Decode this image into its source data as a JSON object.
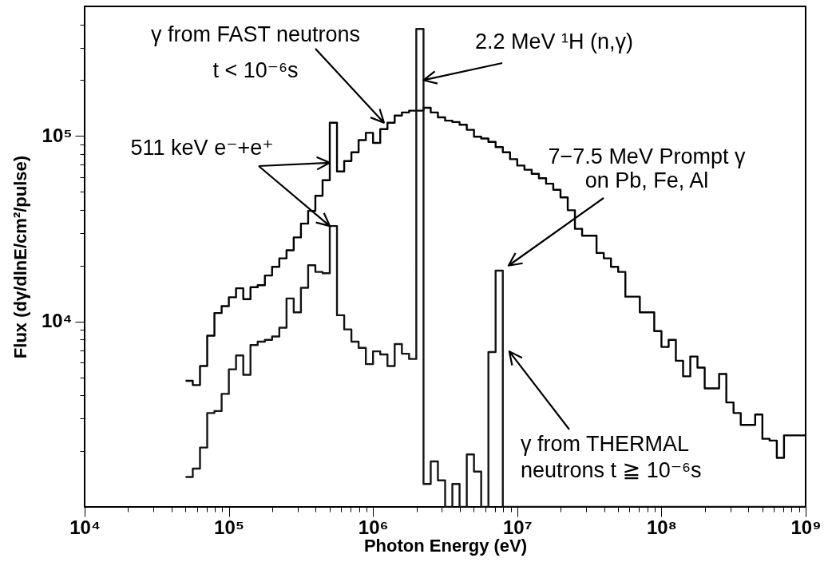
{
  "chart_data": {
    "type": "histogram",
    "xlabel": "Photon Energy (eV)",
    "ylabel": "Flux (dγ/dlnE/cm²/pulse)",
    "log": "xy",
    "xlim": [
      10000,
      1000000000
    ],
    "ylim": [
      1000,
      500000
    ],
    "xticks": [
      {
        "value": 10000,
        "label": "10⁴"
      },
      {
        "value": 20000,
        "label": null
      },
      {
        "value": 30000,
        "label": null
      },
      {
        "value": 40000,
        "label": null
      },
      {
        "value": 50000,
        "label": null
      },
      {
        "value": 60000,
        "label": null
      },
      {
        "value": 70000,
        "label": null
      },
      {
        "value": 80000,
        "label": null
      },
      {
        "value": 90000,
        "label": null
      },
      {
        "value": 100000,
        "label": "10⁵"
      },
      {
        "value": 200000,
        "label": null
      },
      {
        "value": 300000,
        "label": null
      },
      {
        "value": 400000,
        "label": null
      },
      {
        "value": 500000,
        "label": null
      },
      {
        "value": 600000,
        "label": null
      },
      {
        "value": 700000,
        "label": null
      },
      {
        "value": 800000,
        "label": null
      },
      {
        "value": 900000,
        "label": null
      },
      {
        "value": 1000000,
        "label": "10⁶"
      },
      {
        "value": 2000000,
        "label": null
      },
      {
        "value": 3000000,
        "label": null
      },
      {
        "value": 4000000,
        "label": null
      },
      {
        "value": 5000000,
        "label": null
      },
      {
        "value": 6000000,
        "label": null
      },
      {
        "value": 7000000,
        "label": null
      },
      {
        "value": 8000000,
        "label": null
      },
      {
        "value": 9000000,
        "label": null
      },
      {
        "value": 10000000,
        "label": "10⁷"
      },
      {
        "value": 20000000,
        "label": null
      },
      {
        "value": 30000000,
        "label": null
      },
      {
        "value": 40000000,
        "label": null
      },
      {
        "value": 50000000,
        "label": null
      },
      {
        "value": 60000000,
        "label": null
      },
      {
        "value": 70000000,
        "label": null
      },
      {
        "value": 80000000,
        "label": null
      },
      {
        "value": 90000000,
        "label": null
      },
      {
        "value": 100000000,
        "label": "10⁸"
      },
      {
        "value": 200000000,
        "label": null
      },
      {
        "value": 300000000,
        "label": null
      },
      {
        "value": 400000000,
        "label": null
      },
      {
        "value": 500000000,
        "label": null
      },
      {
        "value": 600000000,
        "label": null
      },
      {
        "value": 700000000,
        "label": null
      },
      {
        "value": 800000000,
        "label": null
      },
      {
        "value": 900000000,
        "label": null
      },
      {
        "value": 1000000000,
        "label": "10⁹"
      }
    ],
    "yticks": [
      {
        "value": 2000,
        "label": null
      },
      {
        "value": 3000,
        "label": null
      },
      {
        "value": 4000,
        "label": null
      },
      {
        "value": 5000,
        "label": null
      },
      {
        "value": 6000,
        "label": null
      },
      {
        "value": 7000,
        "label": null
      },
      {
        "value": 8000,
        "label": null
      },
      {
        "value": 9000,
        "label": null
      },
      {
        "value": 10000,
        "label": "10⁴"
      },
      {
        "value": 20000,
        "label": null
      },
      {
        "value": 30000,
        "label": null
      },
      {
        "value": 40000,
        "label": null
      },
      {
        "value": 50000,
        "label": null
      },
      {
        "value": 60000,
        "label": null
      },
      {
        "value": 70000,
        "label": null
      },
      {
        "value": 80000,
        "label": null
      },
      {
        "value": 90000,
        "label": null
      },
      {
        "value": 100000,
        "label": "10⁵"
      },
      {
        "value": 200000,
        "label": null
      },
      {
        "value": 300000,
        "label": null
      },
      {
        "value": 400000,
        "label": null
      }
    ],
    "bins": [
      50120,
      56230,
      63100,
      70790,
      79430,
      89130,
      100000,
      112200,
      125900,
      141300,
      158500,
      177800,
      199500,
      223900,
      251200,
      281800,
      316200,
      354800,
      398100,
      446700,
      501200,
      562300,
      631000,
      707900,
      794300,
      891300,
      1000000,
      1122000,
      1259000,
      1413000,
      1585000,
      1778000,
      1995000,
      2239000,
      2512000,
      2818000,
      3162000,
      3548000,
      3981000,
      4467000,
      5012000,
      5623000,
      6310000,
      7079000,
      7943000,
      8913000,
      10000000,
      11220000,
      12590000,
      14130000,
      15850000,
      17780000,
      19950000,
      22390000,
      25120000,
      28180000,
      31620000,
      35480000,
      39810000,
      44670000,
      50120000,
      56230000,
      63100000,
      70790000,
      79430000,
      89130000,
      100000000,
      112200000,
      125900000,
      141300000,
      158500000,
      177800000,
      199500000,
      223900000,
      251200000,
      281800000,
      316200000,
      354800000,
      398100000,
      446700000,
      501200000,
      562300000,
      631000000,
      707900000,
      794300000,
      891300000,
      1000000000
    ],
    "series": [
      {
        "color": "#000000",
        "values": [
          4790,
          4540,
          5750,
          8380,
          11100,
          12100,
          13500,
          15100,
          13200,
          15300,
          15700,
          17700,
          19700,
          21900,
          24200,
          28400,
          33700,
          39500,
          47600,
          57800,
          118000,
          64400,
          73300,
          81700,
          95100,
          104000,
          91800,
          109000,
          118000,
          129000,
          134000,
          137000,
          137000,
          142000,
          134000,
          126000,
          121000,
          119000,
          115000,
          108000,
          99100,
          97000,
          92900,
          87100,
          81700,
          75000,
          69300,
          65800,
          62500,
          59200,
          55300,
          51300,
          46700,
          39800,
          31600,
          29000,
          29000,
          23400,
          21900,
          19700,
          18500,
          13600,
          13600,
          11200,
          11200,
          8870,
          7290,
          7960,
          6140,
          5060,
          6470,
          5640,
          4360,
          4360,
          5210,
          3660,
          3210,
          2770,
          2770,
          3150,
          2330,
          2280,
          1840,
          2430,
          2430,
          2430
        ]
      },
      {
        "color": "#141414",
        "values": [
          1450,
          1610,
          2090,
          3210,
          3290,
          4070,
          5520,
          6560,
          5160,
          7460,
          7780,
          7960,
          8300,
          9250,
          13300,
          11200,
          15200,
          20100,
          18500,
          18200,
          32700,
          10800,
          9060,
          7780,
          7210,
          5890,
          6900,
          6640,
          5750,
          7550,
          6700,
          6280,
          378000,
          1330,
          1760,
          1390,
          null,
          1330,
          null,
          1920,
          1550,
          null,
          6840,
          18800,
          null,
          null,
          null,
          null,
          null,
          null,
          null,
          null,
          null,
          null,
          null,
          null,
          null,
          null,
          null,
          null,
          null,
          null,
          null,
          null,
          null,
          null,
          null,
          null,
          null,
          null,
          null,
          null,
          null,
          null,
          null,
          null,
          null,
          null,
          null,
          null,
          null,
          null,
          null,
          null,
          null,
          null
        ]
      }
    ],
    "annotations": [
      {
        "text": "γ from FAST neutrons\nt < 10⁻⁶s",
        "x": 1190000,
        "y": 118000
      },
      {
        "text": "2.2 MeV ¹H (n,γ)",
        "x": 2239000,
        "y": 200000
      },
      {
        "text": "511 keV e⁻+e⁺",
        "x": 501200,
        "y": 71800
      },
      {
        "text": "7−7.5 MeV Prompt γ\non Pb, Fe, Al",
        "x": 8700000,
        "y": 20000
      },
      {
        "text": "γ from THERMAL\nneutrons t ≧ 10⁻⁶s",
        "x": 8800000,
        "y": 6900
      }
    ]
  }
}
